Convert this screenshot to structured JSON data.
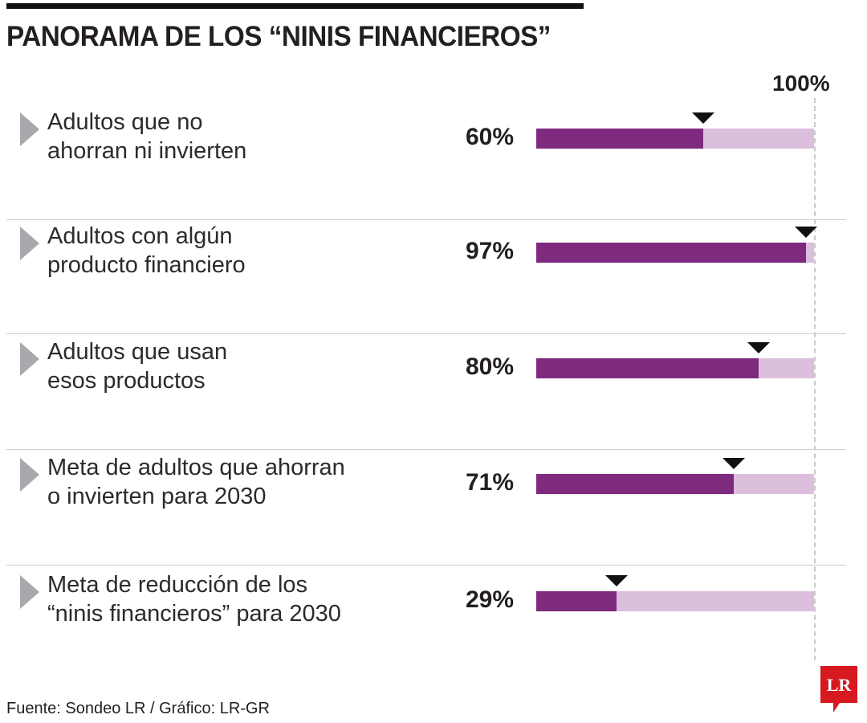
{
  "header": {
    "title": "PANORAMA DE LOS “NINIS FINANCIEROS”"
  },
  "chart_data": {
    "type": "bar",
    "orientation": "horizontal",
    "title": "PANORAMA DE LOS “NINIS FINANCIEROS”",
    "scale_label": "100%",
    "xlim": [
      0,
      100
    ],
    "categories": [
      [
        "Adultos que no",
        "ahorran ni invierten"
      ],
      [
        "Adultos con algún",
        "producto financiero"
      ],
      [
        "Adultos que usan",
        "esos productos"
      ],
      [
        "Meta de adultos que ahorran",
        "o invierten para 2030"
      ],
      [
        "Meta de reducción de los",
        "“ninis financieros” para 2030"
      ]
    ],
    "values": [
      60,
      97,
      80,
      71,
      29
    ],
    "value_labels": [
      "60%",
      "97%",
      "80%",
      "71%",
      "29%"
    ],
    "colors": {
      "fill": "#7e2a7e",
      "track": "#dcbfdc",
      "marker": "#111111"
    }
  },
  "footer": {
    "source": "Fuente: Sondeo LR / Gráfico: LR-GR",
    "logo_text": "LR",
    "logo_color": "#d71920"
  }
}
